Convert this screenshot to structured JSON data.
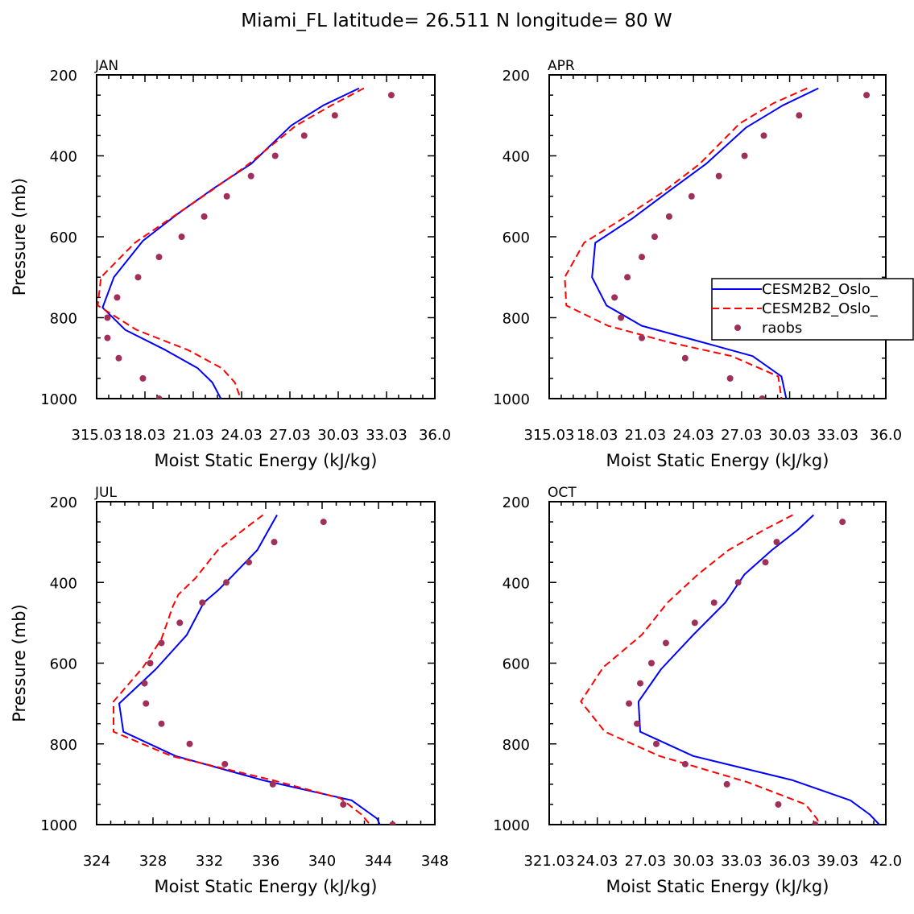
{
  "title": "Miami_FL  latitude= 26.511 N longitude= 80 W",
  "colors": {
    "series1": "#0000ff",
    "series2": "#ff0000",
    "raobs": "#a0305a"
  },
  "legend": [
    {
      "label": "CESM2B2_Oslo_",
      "style": "solid",
      "colorKey": "series1"
    },
    {
      "label": "CESM2B2_Oslo_",
      "style": "dashed",
      "colorKey": "series2"
    },
    {
      "label": "raobs",
      "style": "dot",
      "colorKey": "raobs"
    }
  ],
  "chart_data": [
    {
      "type": "line",
      "panel": "JAN",
      "xlabel": "Moist Static Energy (kJ/kg)",
      "ylabel": "Pressure (mb)",
      "xlim": [
        315.03,
        336.0
      ],
      "ylim": [
        200,
        1000
      ],
      "x_tick_labels": [
        "315.03",
        "18.03",
        "21.03",
        "24.03",
        "27.03",
        "30.03",
        "33.03",
        "36.0"
      ],
      "y_ticks": [
        200,
        400,
        600,
        800,
        1000
      ],
      "series": [
        {
          "name": "CESM2B2_Oslo_ (solid)",
          "x": [
            331.3,
            329.1,
            327.1,
            324.6,
            322.3,
            320.0,
            317.9,
            316.1,
            315.4,
            316.8,
            319.3,
            321.3,
            322.2,
            322.8
          ],
          "y": [
            233,
            275,
            325,
            420,
            480,
            545,
            610,
            700,
            775,
            830,
            880,
            925,
            960,
            1005
          ]
        },
        {
          "name": "CESM2B2_Oslo_ (dashed)",
          "x": [
            331.6,
            329.6,
            327.4,
            324.3,
            322.0,
            319.6,
            317.4,
            315.3,
            315.1,
            317.5,
            320.7,
            322.8,
            323.6,
            324.0
          ],
          "y": [
            233,
            275,
            325,
            425,
            490,
            555,
            615,
            700,
            770,
            830,
            880,
            925,
            960,
            1005
          ]
        },
        {
          "name": "raobs",
          "x": [
            333.3,
            329.8,
            327.9,
            326.1,
            324.6,
            323.1,
            321.7,
            320.3,
            318.9,
            317.6,
            316.3,
            315.7,
            315.7,
            316.4,
            317.9,
            318.9
          ],
          "y": [
            250,
            300,
            350,
            400,
            450,
            500,
            550,
            600,
            650,
            700,
            750,
            800,
            850,
            900,
            950,
            1000
          ]
        }
      ]
    },
    {
      "type": "line",
      "panel": "APR",
      "xlabel": "Moist Static Energy (kJ/kg)",
      "ylabel": "",
      "xlim": [
        315.03,
        336.0
      ],
      "ylim": [
        200,
        1000
      ],
      "x_tick_labels": [
        "315.03",
        "18.03",
        "21.03",
        "24.03",
        "27.03",
        "30.03",
        "33.03",
        "36.0"
      ],
      "y_ticks": [
        200,
        400,
        600,
        800,
        1000
      ],
      "series": [
        {
          "name": "CESM2B2_Oslo_ (solid)",
          "x": [
            331.8,
            329.6,
            327.3,
            324.8,
            322.4,
            320.2,
            317.9,
            317.7,
            318.6,
            320.8,
            324.5,
            327.7,
            329.5,
            329.8
          ],
          "y": [
            233,
            275,
            330,
            420,
            490,
            555,
            615,
            700,
            770,
            820,
            860,
            895,
            945,
            1000
          ]
        },
        {
          "name": "CESM2B2_Oslo_ (dashed)",
          "x": [
            331.1,
            329.0,
            326.9,
            324.4,
            322.1,
            319.6,
            317.2,
            316.0,
            316.1,
            318.7,
            322.4,
            326.4,
            329.3,
            329.5
          ],
          "y": [
            233,
            270,
            320,
            420,
            490,
            555,
            615,
            700,
            770,
            820,
            860,
            895,
            945,
            1000
          ]
        },
        {
          "name": "raobs",
          "x": [
            334.8,
            330.6,
            328.4,
            327.2,
            325.6,
            323.9,
            322.5,
            321.6,
            320.8,
            319.9,
            319.1,
            319.5,
            320.8,
            323.5,
            326.3,
            328.3
          ],
          "y": [
            250,
            300,
            350,
            400,
            450,
            500,
            550,
            600,
            650,
            700,
            750,
            800,
            850,
            900,
            950,
            1000
          ]
        }
      ]
    },
    {
      "type": "line",
      "panel": "JUL",
      "xlabel": "Moist Static Energy (kJ/kg)",
      "ylabel": "Pressure (mb)",
      "xlim": [
        324,
        348
      ],
      "ylim": [
        200,
        1000
      ],
      "x_tick_labels": [
        "324",
        "328",
        "332",
        "336",
        "340",
        "344",
        "348"
      ],
      "y_ticks": [
        200,
        400,
        600,
        800,
        1000
      ],
      "series": [
        {
          "name": "CESM2B2_Oslo_ (solid)",
          "x": [
            336.8,
            336.2,
            335.4,
            333.6,
            332.6,
            331.6,
            330.4,
            328.2,
            325.6,
            325.9,
            329.6,
            335.8,
            342.1,
            343.9,
            344.1
          ],
          "y": [
            233,
            270,
            320,
            385,
            420,
            450,
            530,
            615,
            700,
            770,
            830,
            890,
            940,
            985,
            1000
          ]
        },
        {
          "name": "CESM2B2_Oslo_ (dashed)",
          "x": [
            335.8,
            334.4,
            332.6,
            331.0,
            329.8,
            329.4,
            328.6,
            327.3,
            325.2,
            325.2,
            329.3,
            336.5,
            341.3,
            342.8,
            343.4
          ],
          "y": [
            233,
            270,
            320,
            390,
            430,
            460,
            540,
            610,
            695,
            770,
            830,
            890,
            935,
            975,
            1000
          ]
        },
        {
          "name": "raobs",
          "x": [
            340.1,
            336.6,
            334.8,
            333.2,
            331.5,
            329.9,
            328.6,
            327.8,
            327.4,
            327.5,
            328.6,
            330.6,
            333.1,
            336.5,
            341.5,
            345.0
          ],
          "y": [
            250,
            300,
            350,
            400,
            450,
            500,
            550,
            600,
            650,
            700,
            750,
            800,
            850,
            900,
            950,
            1000
          ]
        }
      ]
    },
    {
      "type": "line",
      "panel": "OCT",
      "xlabel": "Moist Static Energy (kJ/kg)",
      "ylabel": "",
      "xlim": [
        321.03,
        342.0
      ],
      "ylim": [
        200,
        1000
      ],
      "x_tick_labels": [
        "321.03",
        "24.03",
        "27.03",
        "30.03",
        "33.03",
        "36.03",
        "39.03",
        "42.0"
      ],
      "y_ticks": [
        200,
        400,
        600,
        800,
        1000
      ],
      "series": [
        {
          "name": "CESM2B2_Oslo_ (solid)",
          "x": [
            337.5,
            336.5,
            334.9,
            333.2,
            332.0,
            330.0,
            328.0,
            326.6,
            326.6,
            326.7,
            330.0,
            336.2,
            339.8,
            341.0,
            341.6
          ],
          "y": [
            233,
            270,
            320,
            380,
            450,
            530,
            615,
            695,
            700,
            770,
            830,
            890,
            940,
            975,
            1000
          ]
        },
        {
          "name": "CESM2B2_Oslo_ (dashed)",
          "x": [
            336.2,
            334.4,
            332.2,
            330.3,
            328.4,
            326.8,
            324.4,
            323.0,
            324.5,
            327.9,
            333.4,
            337.0,
            337.7,
            337.9
          ],
          "y": [
            233,
            270,
            320,
            380,
            450,
            530,
            610,
            695,
            770,
            830,
            895,
            950,
            985,
            1000
          ]
        },
        {
          "name": "raobs",
          "x": [
            339.3,
            335.2,
            334.5,
            332.8,
            331.3,
            330.1,
            328.3,
            327.4,
            326.7,
            326.0,
            326.5,
            327.7,
            329.5,
            332.1,
            335.3,
            337.6
          ],
          "y": [
            250,
            300,
            350,
            400,
            450,
            500,
            550,
            600,
            650,
            700,
            750,
            800,
            850,
            900,
            950,
            1000
          ]
        }
      ]
    }
  ]
}
